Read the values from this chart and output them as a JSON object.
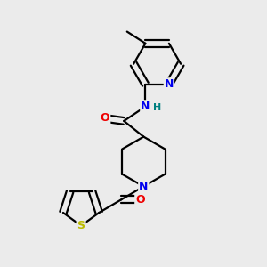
{
  "bg_color": "#ebebeb",
  "bond_color": "#000000",
  "bond_width": 1.6,
  "atom_colors": {
    "N": "#0000ee",
    "O": "#ee0000",
    "S": "#bbbb00",
    "H": "#008080",
    "C": "#000000"
  },
  "font_size": 9,
  "font_size_h": 8
}
